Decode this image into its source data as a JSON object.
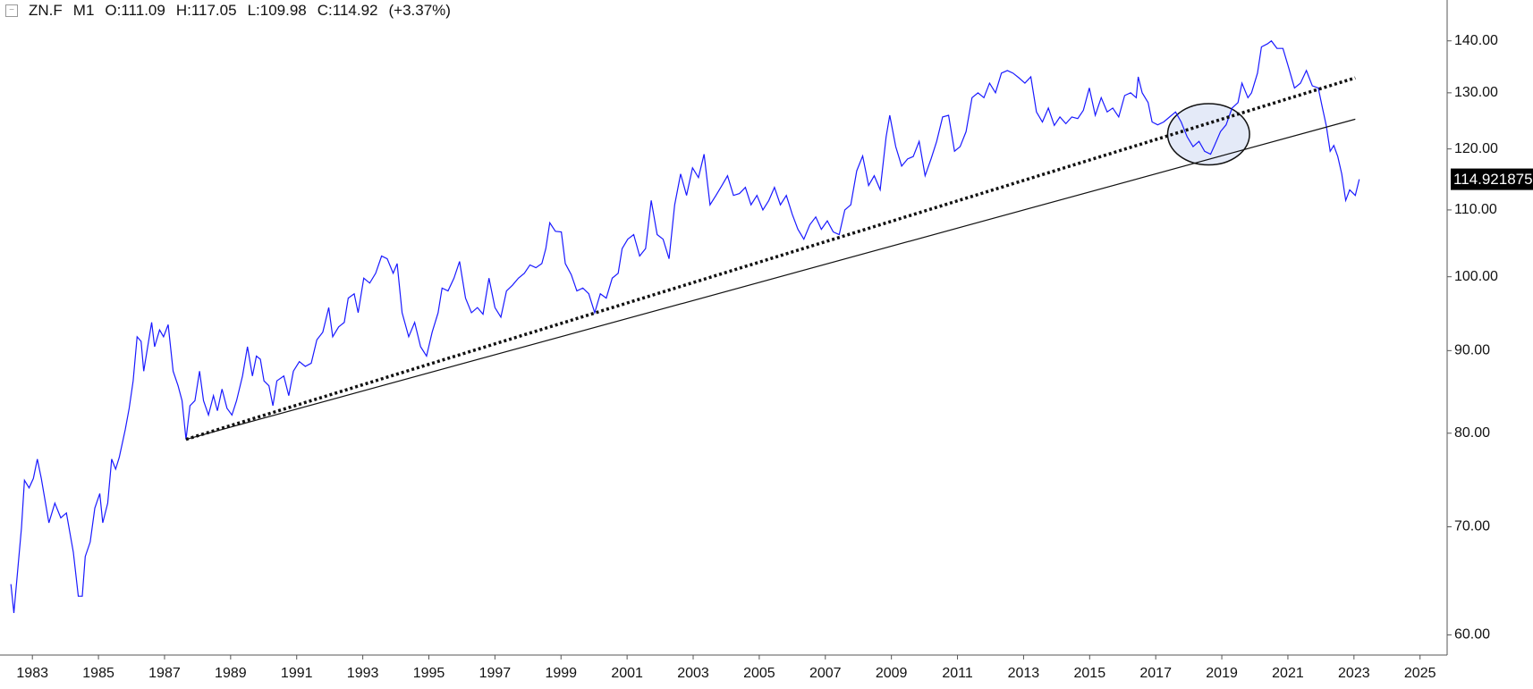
{
  "chart_data": {
    "type": "line",
    "header": {
      "symbol": "ZN.F",
      "timeframe": "M1",
      "ohlc": [
        "O:111.09",
        "H:117.05",
        "L:109.98",
        "C:114.92"
      ],
      "change": "(+3.37%)"
    },
    "log_scale": true,
    "color": "#1a1aff",
    "xlim": [
      1982.02,
      2025.82
    ],
    "ylim": [
      58.3,
      148.4
    ],
    "xticks": [
      1983,
      1985,
      1987,
      1989,
      1991,
      1993,
      1995,
      1997,
      1999,
      2001,
      2003,
      2005,
      2007,
      2009,
      2011,
      2013,
      2015,
      2017,
      2019,
      2021,
      2023,
      2025
    ],
    "yticks": [
      {
        "value": 60,
        "label": "60.00"
      },
      {
        "value": 70,
        "label": "70.00"
      },
      {
        "value": 80,
        "label": "80.00"
      },
      {
        "value": 90,
        "label": "90.00"
      },
      {
        "value": 100,
        "label": "100.00"
      },
      {
        "value": 110,
        "label": "110.00"
      },
      {
        "value": 120,
        "label": "120.00"
      },
      {
        "value": 130,
        "label": "130.00"
      },
      {
        "value": 140,
        "label": "140.00"
      }
    ],
    "last_price": 114.921875,
    "x": [
      1982.35,
      1982.44,
      1982.67,
      1982.76,
      1982.9,
      1983.03,
      1983.15,
      1983.27,
      1983.5,
      1983.68,
      1983.86,
      1984.03,
      1984.24,
      1984.39,
      1984.51,
      1984.6,
      1984.75,
      1984.89,
      1985.04,
      1985.13,
      1985.28,
      1985.4,
      1985.52,
      1985.63,
      1985.81,
      1985.93,
      1986.05,
      1986.17,
      1986.29,
      1986.37,
      1986.49,
      1986.61,
      1986.7,
      1986.85,
      1986.97,
      1987.11,
      1987.26,
      1987.41,
      1987.53,
      1987.65,
      1987.77,
      1987.92,
      1988.06,
      1988.18,
      1988.33,
      1988.48,
      1988.6,
      1988.74,
      1988.89,
      1989.04,
      1989.18,
      1989.36,
      1989.51,
      1989.66,
      1989.78,
      1989.9,
      1990.01,
      1990.16,
      1990.28,
      1990.4,
      1990.61,
      1990.76,
      1990.9,
      1991.08,
      1991.26,
      1991.44,
      1991.61,
      1991.79,
      1991.97,
      1992.09,
      1992.27,
      1992.44,
      1992.56,
      1992.74,
      1992.86,
      1993.03,
      1993.21,
      1993.39,
      1993.57,
      1993.74,
      1993.92,
      1994.04,
      1994.19,
      1994.39,
      1994.57,
      1994.75,
      1994.93,
      1995.1,
      1995.28,
      1995.4,
      1995.58,
      1995.76,
      1995.93,
      1996.11,
      1996.29,
      1996.47,
      1996.64,
      1996.82,
      1997.0,
      1997.18,
      1997.35,
      1997.53,
      1997.71,
      1997.89,
      1998.06,
      1998.24,
      1998.42,
      1998.54,
      1998.66,
      1998.83,
      1999.01,
      1999.13,
      1999.31,
      1999.48,
      1999.66,
      1999.84,
      2000.02,
      2000.19,
      2000.37,
      2000.55,
      2000.73,
      2000.85,
      2001.02,
      2001.2,
      2001.38,
      2001.56,
      2001.73,
      2001.91,
      2002.09,
      2002.27,
      2002.44,
      2002.62,
      2002.8,
      2002.98,
      2003.16,
      2003.33,
      2003.51,
      2003.69,
      2003.87,
      2004.04,
      2004.22,
      2004.4,
      2004.58,
      2004.75,
      2004.93,
      2005.11,
      2005.29,
      2005.46,
      2005.64,
      2005.82,
      2006.0,
      2006.17,
      2006.35,
      2006.53,
      2006.71,
      2006.88,
      2007.06,
      2007.24,
      2007.42,
      2007.59,
      2007.77,
      2007.95,
      2008.13,
      2008.31,
      2008.48,
      2008.66,
      2008.84,
      2008.95,
      2009.13,
      2009.31,
      2009.49,
      2009.66,
      2009.84,
      2010.02,
      2010.2,
      2010.37,
      2010.55,
      2010.73,
      2010.91,
      2011.08,
      2011.26,
      2011.44,
      2011.62,
      2011.8,
      2011.97,
      2012.15,
      2012.33,
      2012.51,
      2012.68,
      2012.86,
      2013.04,
      2013.22,
      2013.39,
      2013.57,
      2013.75,
      2013.93,
      2014.1,
      2014.28,
      2014.46,
      2014.64,
      2014.81,
      2014.99,
      2015.17,
      2015.35,
      2015.53,
      2015.7,
      2015.88,
      2016.06,
      2016.24,
      2016.41,
      2016.47,
      2016.59,
      2016.77,
      2016.89,
      2017.06,
      2017.24,
      2017.42,
      2017.6,
      2017.77,
      2017.95,
      2018.13,
      2018.31,
      2018.48,
      2018.66,
      2018.78,
      2018.96,
      2019.13,
      2019.31,
      2019.49,
      2019.61,
      2019.79,
      2019.9,
      2020.08,
      2020.2,
      2020.38,
      2020.5,
      2020.67,
      2020.85,
      2021.03,
      2021.2,
      2021.38,
      2021.56,
      2021.74,
      2021.92,
      2022.04,
      2022.16,
      2022.28,
      2022.39,
      2022.51,
      2022.63,
      2022.75,
      2022.87,
      2023.04,
      2023.16
    ],
    "values": [
      64.5,
      61.9,
      69.9,
      74.8,
      74.0,
      75.0,
      77.1,
      75.0,
      70.4,
      72.4,
      70.9,
      71.4,
      67.5,
      63.4,
      63.4,
      67.1,
      68.5,
      71.9,
      73.4,
      70.4,
      72.4,
      77.1,
      76.0,
      77.3,
      80.4,
      82.9,
      86.2,
      91.8,
      91.2,
      87.4,
      90.5,
      93.7,
      90.5,
      92.7,
      91.8,
      93.4,
      87.4,
      85.6,
      83.8,
      79.3,
      83.2,
      83.8,
      87.4,
      83.8,
      82.1,
      84.4,
      82.6,
      85.2,
      82.9,
      82.1,
      83.8,
      86.8,
      90.5,
      86.8,
      89.3,
      88.9,
      86.2,
      85.6,
      83.2,
      86.2,
      86.8,
      84.4,
      87.4,
      88.6,
      88.0,
      88.4,
      91.4,
      92.4,
      95.7,
      91.8,
      93.1,
      93.7,
      97.0,
      97.6,
      95.0,
      99.8,
      99.1,
      100.5,
      103.0,
      102.6,
      100.5,
      101.9,
      95.0,
      91.8,
      93.7,
      90.5,
      89.3,
      92.4,
      95.0,
      98.4,
      98.0,
      99.8,
      102.2,
      97.0,
      95.0,
      95.7,
      94.8,
      99.8,
      95.7,
      94.4,
      98.0,
      98.8,
      99.8,
      100.5,
      101.7,
      101.3,
      101.9,
      104.1,
      108.0,
      106.7,
      106.6,
      101.9,
      100.3,
      98.0,
      98.4,
      97.6,
      95.0,
      97.6,
      97.0,
      99.8,
      100.5,
      104.1,
      105.5,
      106.2,
      103.0,
      104.1,
      111.5,
      106.2,
      105.5,
      102.6,
      110.8,
      115.8,
      112.3,
      116.8,
      115.2,
      119.1,
      110.8,
      112.3,
      113.9,
      115.5,
      112.3,
      112.6,
      113.6,
      110.8,
      112.3,
      110.0,
      111.5,
      113.6,
      110.8,
      112.3,
      109.3,
      107.0,
      105.5,
      107.7,
      108.9,
      107.0,
      108.3,
      106.6,
      106.2,
      110.0,
      110.8,
      116.3,
      118.8,
      113.9,
      115.5,
      113.2,
      122.1,
      125.9,
      120.4,
      117.1,
      118.3,
      118.7,
      121.3,
      115.5,
      118.3,
      121.3,
      125.6,
      125.9,
      119.6,
      120.4,
      123.0,
      129.1,
      130.0,
      129.1,
      131.8,
      130.0,
      133.7,
      134.2,
      133.7,
      132.8,
      131.8,
      133.0,
      126.5,
      124.7,
      127.2,
      124.1,
      125.6,
      124.4,
      125.6,
      125.3,
      126.8,
      130.9,
      125.9,
      129.1,
      126.5,
      127.2,
      125.6,
      129.5,
      130.0,
      129.1,
      133.0,
      130.0,
      128.2,
      124.7,
      124.2,
      124.7,
      125.6,
      126.5,
      124.7,
      122.1,
      120.4,
      121.3,
      119.6,
      119.1,
      120.6,
      123.0,
      124.2,
      127.2,
      128.2,
      131.8,
      129.1,
      130.0,
      133.7,
      138.8,
      139.4,
      140.0,
      138.5,
      138.5,
      134.6,
      130.9,
      131.8,
      134.2,
      131.3,
      130.9,
      127.4,
      124.1,
      119.6,
      120.6,
      118.7,
      115.8,
      111.5,
      113.2,
      112.3,
      114.92
    ],
    "trendlines": [
      {
        "style": "dotted",
        "x": [
          1987.65,
          2023.04
        ],
        "y": [
          79.3,
          132.8
        ]
      },
      {
        "style": "solid",
        "x": [
          1987.65,
          2023.04
        ],
        "y": [
          79.3,
          125.2
        ]
      }
    ],
    "highlight": {
      "xlim": [
        2017.36,
        2019.84
      ],
      "ylim": [
        117.3,
        128.0
      ]
    }
  }
}
